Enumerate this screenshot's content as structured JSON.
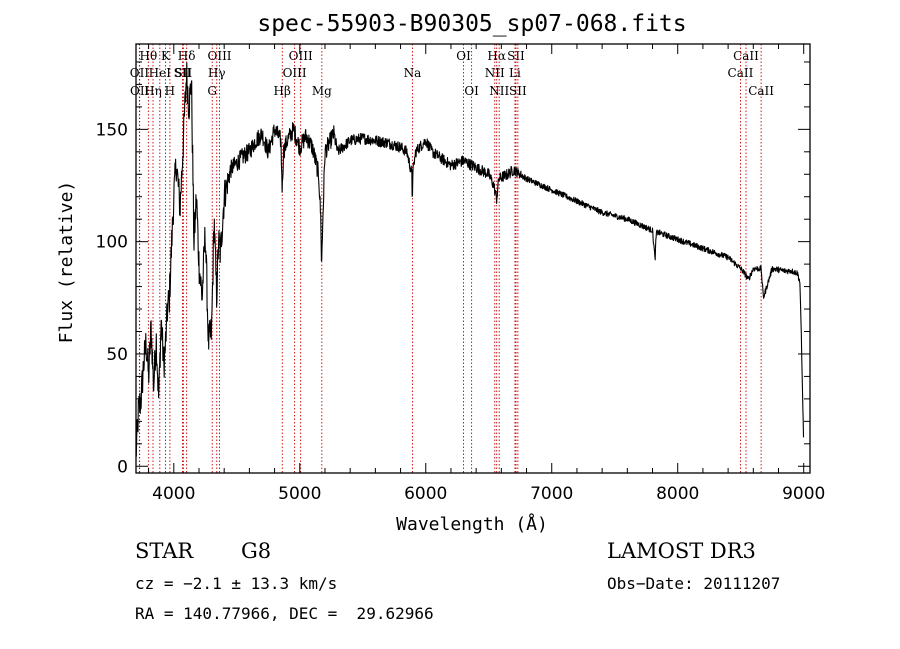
{
  "chart_data": {
    "type": "line",
    "title": "spec-55903-B90305_sp07-068.fits",
    "xlabel": "Wavelength (Å)",
    "ylabel": "Flux (relative)",
    "xlim": [
      3700,
      9050
    ],
    "ylim": [
      -3,
      188
    ],
    "x_ticks": [
      4000,
      5000,
      6000,
      7000,
      8000,
      9000
    ],
    "y_ticks": [
      0,
      50,
      100,
      150
    ],
    "line_color": "#000000",
    "marker_color": "#cc0000",
    "spectrum_anchor": {
      "name": "flux",
      "x": [
        3700,
        3720,
        3740,
        3760,
        3780,
        3800,
        3820,
        3840,
        3860,
        3880,
        3900,
        3920,
        3935,
        3950,
        3965,
        3980,
        4000,
        4020,
        4050,
        4080,
        4101,
        4120,
        4140,
        4160,
        4180,
        4200,
        4225,
        4250,
        4275,
        4300,
        4320,
        4340,
        4355,
        4370,
        4400,
        4450,
        4500,
        4550,
        4600,
        4650,
        4700,
        4750,
        4800,
        4850,
        4861,
        4870,
        4900,
        4950,
        5000,
        5050,
        5100,
        5150,
        5167,
        5173,
        5183,
        5200,
        5270,
        5300,
        5400,
        5500,
        5600,
        5700,
        5800,
        5850,
        5890,
        5893,
        5896,
        5920,
        5950,
        6000,
        6050,
        6100,
        6200,
        6300,
        6400,
        6500,
        6540,
        6563,
        6580,
        6650,
        6700,
        6800,
        7000,
        7200,
        7400,
        7600,
        7800,
        7820,
        7830,
        7850,
        8000,
        8200,
        8400,
        8500,
        8542,
        8560,
        8600,
        8662,
        8680,
        8750,
        8850,
        8900,
        8950,
        8970,
        8980,
        8990,
        9000
      ],
      "y": [
        5,
        25,
        30,
        45,
        55,
        40,
        62,
        35,
        58,
        30,
        65,
        45,
        55,
        70,
        75,
        95,
        120,
        135,
        115,
        150,
        175,
        160,
        172,
        100,
        120,
        90,
        75,
        105,
        55,
        60,
        110,
        75,
        100,
        95,
        120,
        132,
        135,
        138,
        140,
        145,
        148,
        140,
        150,
        145,
        122,
        140,
        145,
        150,
        142,
        147,
        142,
        130,
        110,
        88,
        110,
        140,
        148,
        140,
        145,
        146,
        145,
        144,
        142,
        140,
        130,
        115,
        130,
        140,
        142,
        145,
        140,
        138,
        134,
        136,
        133,
        130,
        125,
        119,
        128,
        130,
        132,
        128,
        123,
        118,
        113,
        110,
        105,
        92,
        104,
        104,
        101,
        97,
        93,
        88,
        85,
        83,
        88,
        88,
        75,
        88,
        87,
        87,
        86,
        82,
        60,
        35,
        10
      ],
      "noise": [
        8,
        8,
        8,
        8,
        8,
        8,
        8,
        8,
        8,
        8,
        8,
        8,
        8,
        8,
        8,
        8,
        8,
        8,
        8,
        8,
        8,
        8,
        8,
        8,
        8,
        8,
        8,
        8,
        8,
        8,
        8,
        8,
        8,
        8,
        8,
        4,
        4,
        4,
        4,
        4,
        4,
        4,
        4,
        4,
        4,
        4,
        4,
        4,
        4,
        4,
        4,
        4,
        4,
        4,
        4,
        4,
        4,
        2.5,
        2.5,
        2.5,
        2.5,
        2.5,
        2.5,
        2.5,
        2.5,
        2.5,
        2.5,
        2.5,
        2.5,
        2.5,
        2.5,
        2.5,
        2.5,
        2.5,
        2.5,
        2.5,
        2.5,
        2.5,
        2.5,
        2.5,
        2.5,
        1.3,
        1.3,
        1.3,
        1.3,
        1.3,
        1.3,
        1.3,
        1.3,
        1.3,
        1.3,
        1.3,
        1.3,
        1.3,
        1.3,
        1.3,
        1.3,
        1.3,
        1.3,
        1.3,
        1.3,
        1.3,
        1.3,
        1.3,
        1.3,
        1.3,
        1.3
      ]
    },
    "line_markers": [
      {
        "label": "Hθ",
        "x": 3798,
        "row": 1
      },
      {
        "label": "OII",
        "x": 3727,
        "row": 2
      },
      {
        "label": "OII",
        "x": 3729,
        "row": 3
      },
      {
        "label": "Hη",
        "x": 3835,
        "row": 3
      },
      {
        "label": "HeI",
        "x": 3889,
        "row": 2
      },
      {
        "label": "K",
        "x": 3934,
        "row": 1
      },
      {
        "label": "SII",
        "x": 4069,
        "row": 2
      },
      {
        "label": "H",
        "x": 3969,
        "row": 3
      },
      {
        "label": "Hδ",
        "x": 4102,
        "row": 1
      },
      {
        "label": "SII",
        "x": 4076,
        "row": 2
      },
      {
        "label": "OIII",
        "x": 4363,
        "row": 1
      },
      {
        "label": "Hγ",
        "x": 4341,
        "row": 2
      },
      {
        "label": "G",
        "x": 4305,
        "row": 3
      },
      {
        "label": "Hβ",
        "x": 4861,
        "row": 3
      },
      {
        "label": "OIII",
        "x": 5007,
        "row": 1
      },
      {
        "label": "OIII",
        "x": 4959,
        "row": 2
      },
      {
        "label": "Mg",
        "x": 5175,
        "row": 3
      },
      {
        "label": "Na",
        "x": 5894,
        "row": 2
      },
      {
        "label": "OI",
        "x": 6300,
        "row": 1
      },
      {
        "label": "OI",
        "x": 6364,
        "row": 3
      },
      {
        "label": "Hα",
        "x": 6563,
        "row": 1
      },
      {
        "label": "NII",
        "x": 6548,
        "row": 2
      },
      {
        "label": "NII",
        "x": 6583,
        "row": 3
      },
      {
        "label": "SII",
        "x": 6716,
        "row": 1
      },
      {
        "label": "Li",
        "x": 6708,
        "row": 2
      },
      {
        "label": "SII",
        "x": 6731,
        "row": 3
      },
      {
        "label": "CaII",
        "x": 8542,
        "row": 1
      },
      {
        "label": "CaII",
        "x": 8498,
        "row": 2
      },
      {
        "label": "CaII",
        "x": 8662,
        "row": 3
      }
    ]
  },
  "info": {
    "class": "STAR",
    "subclass": "G8",
    "survey": "LAMOST DR3",
    "cz": "cz = −2.1 ± 13.3 km/s",
    "obs_date": "Obs−Date: 20111207",
    "coords": "RA = 140.77966, DEC =  29.62966"
  }
}
